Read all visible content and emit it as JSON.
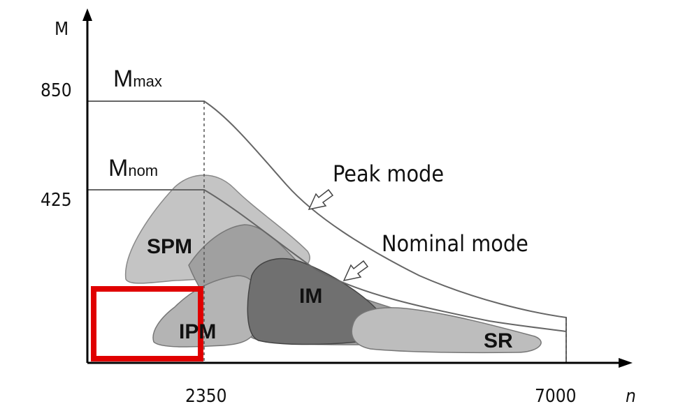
{
  "axes": {
    "y_label": "M",
    "x_label": "n",
    "y_ticks": [
      "850",
      "425"
    ],
    "x_ticks": [
      "2350",
      "7000"
    ]
  },
  "curves": {
    "max": {
      "symbol": "M",
      "subscript": "max"
    },
    "nom": {
      "symbol": "M",
      "subscript": "nom"
    },
    "peak_label": "Peak mode",
    "nominal_label": "Nominal mode"
  },
  "regions": [
    "SPM",
    "IPM",
    "IM",
    "SR"
  ]
}
